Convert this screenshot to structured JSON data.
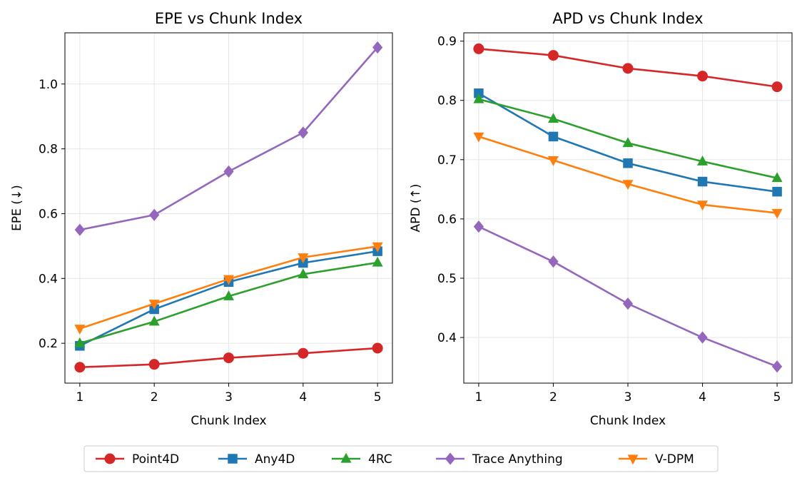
{
  "chart_data": [
    {
      "type": "line",
      "title": "EPE vs Chunk Index",
      "xlabel": "Chunk Index",
      "ylabel": "EPE (↓)",
      "x": [
        1,
        2,
        3,
        4,
        5
      ],
      "xticks": [
        "1",
        "2",
        "3",
        "4",
        "5"
      ],
      "xlim": [
        0.8,
        5.2
      ],
      "ylim": [
        0.077,
        1.158
      ],
      "yticks": [
        0.2,
        0.4,
        0.6,
        0.8,
        1.0
      ],
      "ytick_labels": [
        "0.2",
        "0.4",
        "0.6",
        "0.8",
        "1.0"
      ],
      "grid": true,
      "series": [
        {
          "name": "Point4D",
          "values": [
            0.126,
            0.135,
            0.155,
            0.169,
            0.185
          ]
        },
        {
          "name": "Any4D",
          "values": [
            0.192,
            0.305,
            0.389,
            0.448,
            0.484
          ]
        },
        {
          "name": "4RC",
          "values": [
            0.2,
            0.267,
            0.345,
            0.413,
            0.449
          ]
        },
        {
          "name": "Trace Anything",
          "values": [
            0.55,
            0.596,
            0.73,
            0.85,
            1.113
          ]
        },
        {
          "name": "V-DPM",
          "values": [
            0.245,
            0.322,
            0.398,
            0.465,
            0.499
          ]
        }
      ]
    },
    {
      "type": "line",
      "title": "APD vs Chunk Index",
      "xlabel": "Chunk Index",
      "ylabel": "APD (↑)",
      "x": [
        1,
        2,
        3,
        4,
        5
      ],
      "xticks": [
        "1",
        "2",
        "3",
        "4",
        "5"
      ],
      "xlim": [
        0.8,
        5.2
      ],
      "ylim": [
        0.323,
        0.914
      ],
      "yticks": [
        0.4,
        0.5,
        0.6,
        0.7,
        0.8,
        0.9
      ],
      "ytick_labels": [
        "0.4",
        "0.5",
        "0.6",
        "0.7",
        "0.8",
        "0.9"
      ],
      "grid": true,
      "series": [
        {
          "name": "Point4D",
          "values": [
            0.887,
            0.876,
            0.854,
            0.841,
            0.823
          ]
        },
        {
          "name": "Any4D",
          "values": [
            0.812,
            0.739,
            0.694,
            0.663,
            0.646
          ]
        },
        {
          "name": "4RC",
          "values": [
            0.802,
            0.769,
            0.728,
            0.697,
            0.669
          ]
        },
        {
          "name": "Trace Anything",
          "values": [
            0.587,
            0.528,
            0.457,
            0.4,
            0.351
          ]
        },
        {
          "name": "V-DPM",
          "values": [
            0.739,
            0.699,
            0.659,
            0.624,
            0.61
          ]
        }
      ]
    }
  ],
  "legend": {
    "placement": "bottom-center",
    "items": [
      {
        "label": "Point4D",
        "color": "#d62728",
        "marker": "circle"
      },
      {
        "label": "Any4D",
        "color": "#1f77b4",
        "marker": "square"
      },
      {
        "label": "4RC",
        "color": "#2ca02c",
        "marker": "triangle-up"
      },
      {
        "label": "Trace Anything",
        "color": "#9467bd",
        "marker": "diamond"
      },
      {
        "label": "V-DPM",
        "color": "#ff7f0e",
        "marker": "triangle-down"
      }
    ]
  }
}
